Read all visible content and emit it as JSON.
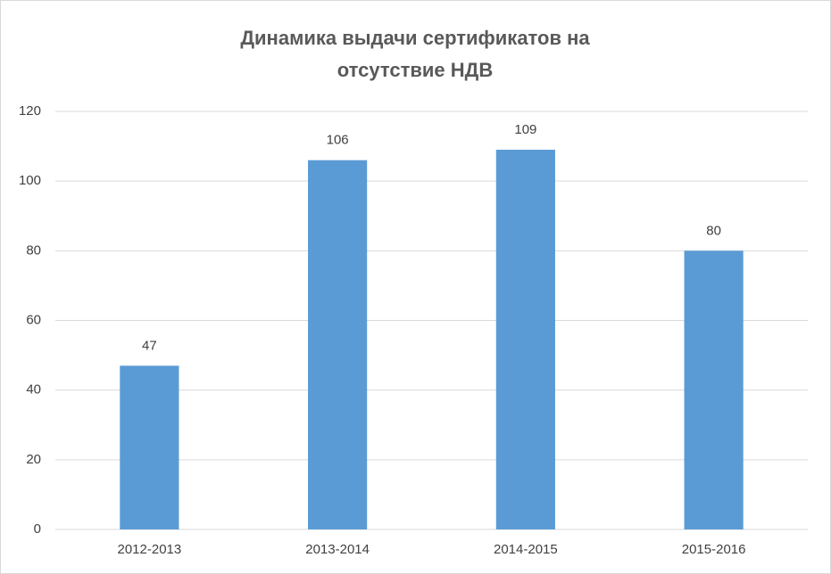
{
  "chart_data": {
    "type": "bar",
    "title": [
      "Динамика выдачи сертификатов на",
      "отсутствие НДВ"
    ],
    "categories": [
      "2012-2013",
      "2013-2014",
      "2014-2015",
      "2015-2016"
    ],
    "values": [
      47,
      106,
      109,
      80
    ],
    "color": "#5b9bd5",
    "ylim": [
      0,
      120
    ],
    "yticks": [
      0,
      20,
      40,
      60,
      80,
      100,
      120
    ],
    "grid": true,
    "data_labels": true
  }
}
